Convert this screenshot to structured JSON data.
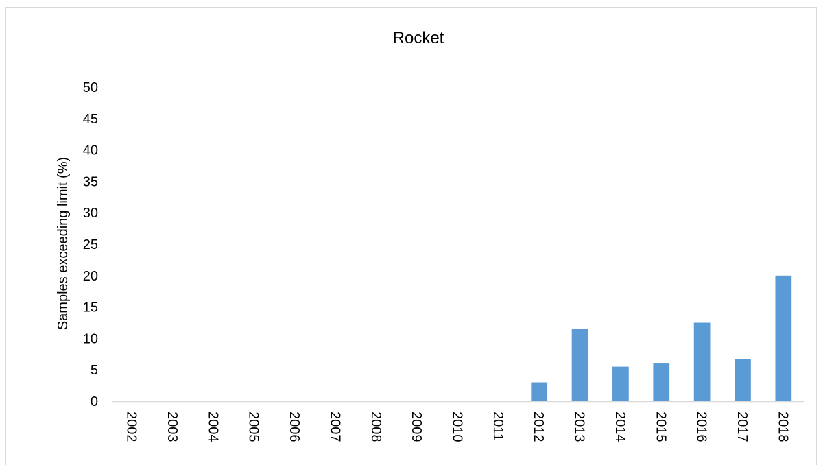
{
  "chart_data": {
    "type": "bar",
    "title": "Rocket",
    "xlabel": "",
    "ylabel": "Samples exceeding limit (%)",
    "categories": [
      "2002",
      "2003",
      "2004",
      "2005",
      "2006",
      "2007",
      "2008",
      "2009",
      "2010",
      "2011",
      "2012",
      "2013",
      "2014",
      "2015",
      "2016",
      "2017",
      "2018"
    ],
    "values": [
      0,
      0,
      0,
      0,
      0,
      0,
      0,
      0,
      0,
      0,
      3.0,
      11.5,
      5.5,
      6.0,
      12.5,
      6.7,
      20.0
    ],
    "ylim": [
      0,
      50
    ],
    "yticks": [
      "0",
      "5",
      "10",
      "15",
      "20",
      "25",
      "30",
      "35",
      "40",
      "45",
      "50"
    ],
    "grid": false,
    "legend": "none",
    "bar_color": "#5b9bd5",
    "axis_color": "#d9d9d9"
  }
}
